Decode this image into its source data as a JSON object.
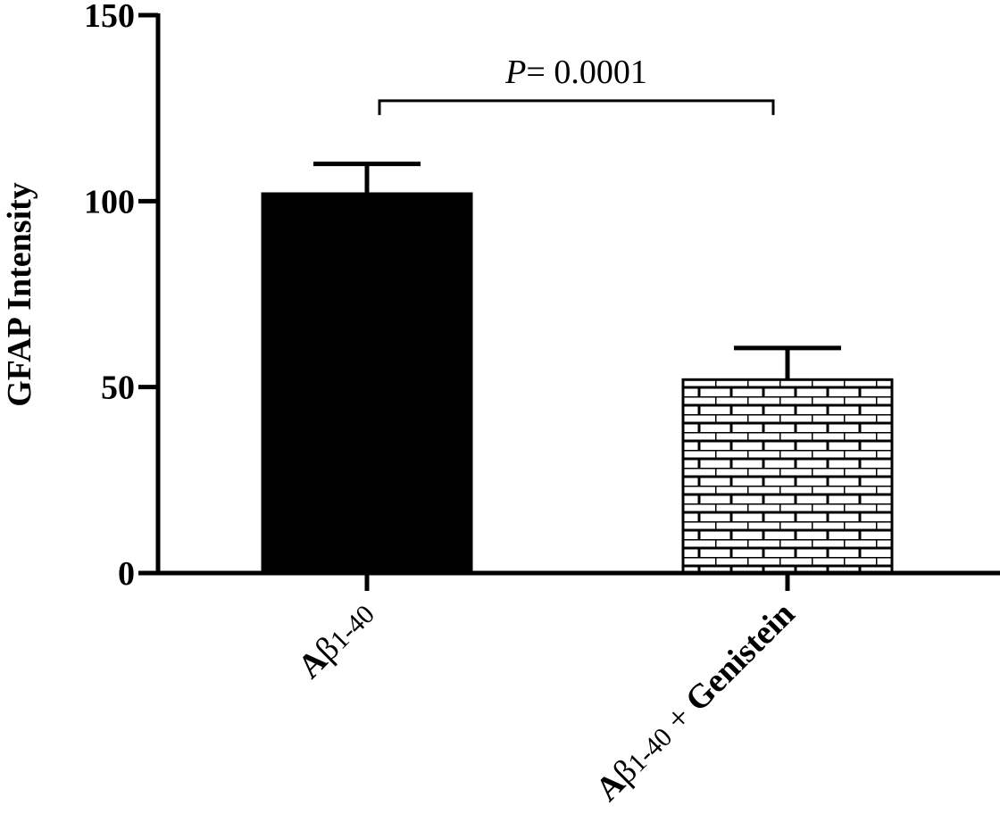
{
  "chart_data": {
    "type": "bar",
    "ylabel": "GFAP Intensity",
    "xlabel": "",
    "ylim": [
      0,
      150
    ],
    "yticks": [
      0,
      50,
      100,
      150
    ],
    "ytick_labels": [
      "0",
      "50",
      "100",
      "150"
    ],
    "grid": false,
    "categories": [
      {
        "parts": [
          {
            "text": "A",
            "bold": true
          },
          {
            "text": "β",
            "bold": false
          },
          {
            "text": "1-40",
            "bold": false,
            "small": true
          }
        ]
      },
      {
        "parts": [
          {
            "text": "A",
            "bold": true
          },
          {
            "text": "β",
            "bold": false
          },
          {
            "text": "1-40",
            "bold": false,
            "small": true
          },
          {
            "text": " + ",
            "bold": false
          },
          {
            "text": "Genistein",
            "bold": true
          }
        ]
      }
    ],
    "values": [
      102,
      52
    ],
    "error": [
      8,
      8.5
    ],
    "fills": [
      "solid",
      "brick"
    ],
    "colors": {
      "bar": "#000000",
      "brick_mortar": "#000000",
      "brick_fill": "#ffffff"
    },
    "annotation": {
      "p_label": "P",
      "p_text": "= 0.0001",
      "between": [
        0,
        1
      ],
      "y": 127
    }
  }
}
